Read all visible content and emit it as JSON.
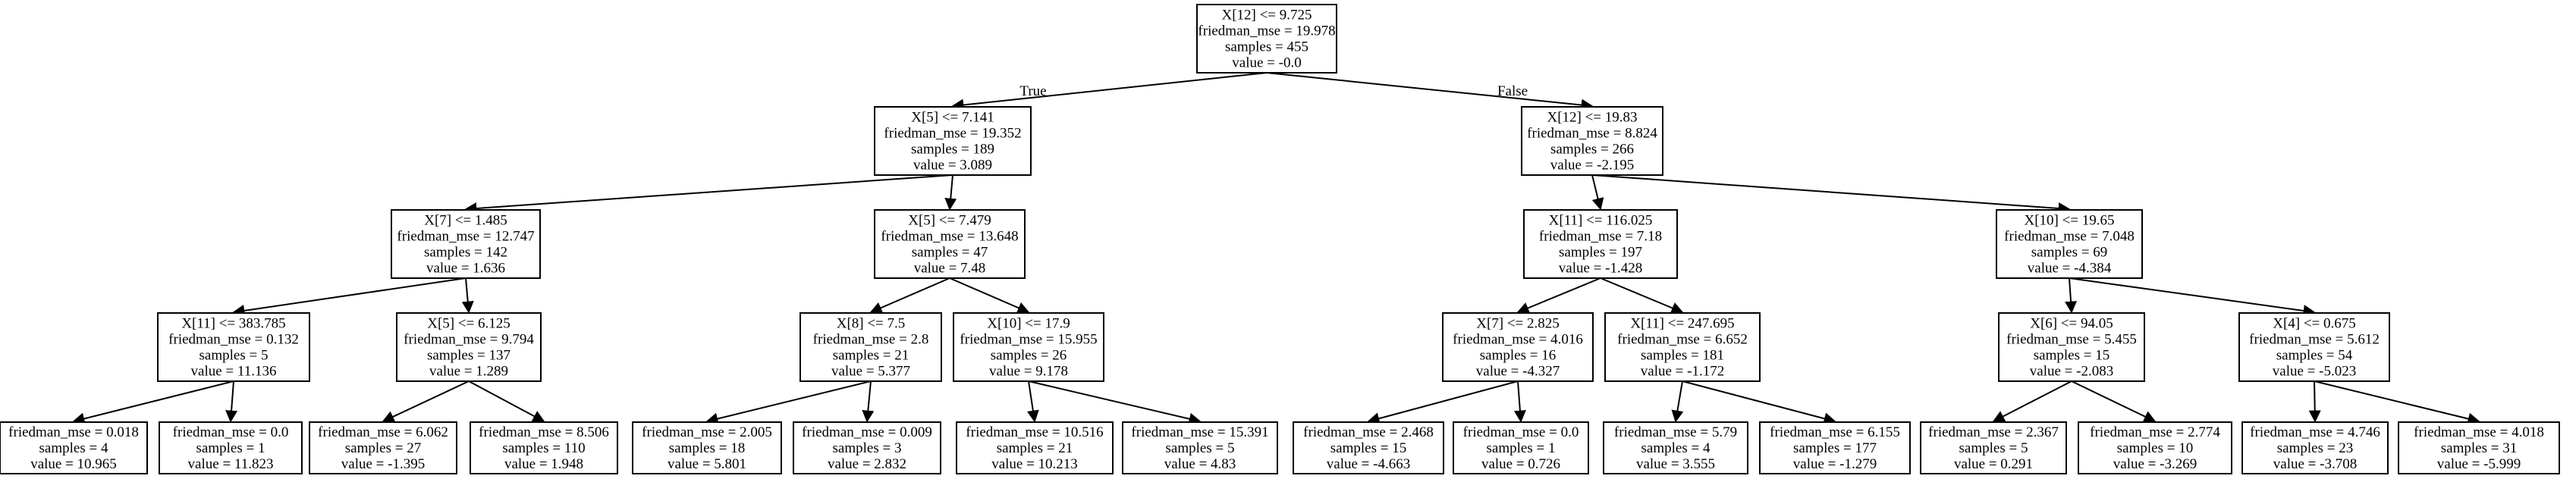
{
  "tree": {
    "nodes": [
      {
        "id": "n0",
        "lines": [
          "X[12] <= 9.725",
          "friedman_mse = 19.978",
          "samples = 455",
          "value = -0.0"
        ]
      },
      {
        "id": "n1",
        "lines": [
          "X[5] <= 7.141",
          "friedman_mse = 19.352",
          "samples = 189",
          "value = 3.089"
        ]
      },
      {
        "id": "n2",
        "lines": [
          "X[12] <= 19.83",
          "friedman_mse = 8.824",
          "samples = 266",
          "value = -2.195"
        ]
      },
      {
        "id": "n3",
        "lines": [
          "X[7] <= 1.485",
          "friedman_mse = 12.747",
          "samples = 142",
          "value = 1.636"
        ]
      },
      {
        "id": "n4",
        "lines": [
          "X[5] <= 7.479",
          "friedman_mse = 13.648",
          "samples = 47",
          "value = 7.48"
        ]
      },
      {
        "id": "n5",
        "lines": [
          "X[11] <= 116.025",
          "friedman_mse = 7.18",
          "samples = 197",
          "value = -1.428"
        ]
      },
      {
        "id": "n6",
        "lines": [
          "X[10] <= 19.65",
          "friedman_mse = 7.048",
          "samples = 69",
          "value = -4.384"
        ]
      },
      {
        "id": "n7",
        "lines": [
          "X[11] <= 383.785",
          "friedman_mse = 0.132",
          "samples = 5",
          "value = 11.136"
        ]
      },
      {
        "id": "n8",
        "lines": [
          "X[5] <= 6.125",
          "friedman_mse = 9.794",
          "samples = 137",
          "value = 1.289"
        ]
      },
      {
        "id": "n9",
        "lines": [
          "X[8] <= 7.5",
          "friedman_mse = 2.8",
          "samples = 21",
          "value = 5.377"
        ]
      },
      {
        "id": "n10",
        "lines": [
          "X[10] <= 17.9",
          "friedman_mse = 15.955",
          "samples = 26",
          "value = 9.178"
        ]
      },
      {
        "id": "n11",
        "lines": [
          "X[7] <= 2.825",
          "friedman_mse = 4.016",
          "samples = 16",
          "value = -4.327"
        ]
      },
      {
        "id": "n12",
        "lines": [
          "X[11] <= 247.695",
          "friedman_mse = 6.652",
          "samples = 181",
          "value = -1.172"
        ]
      },
      {
        "id": "n13",
        "lines": [
          "X[6] <= 94.05",
          "friedman_mse = 5.455",
          "samples = 15",
          "value = -2.083"
        ]
      },
      {
        "id": "n14",
        "lines": [
          "X[4] <= 0.675",
          "friedman_mse = 5.612",
          "samples = 54",
          "value = -5.023"
        ]
      },
      {
        "id": "n15",
        "lines": [
          "friedman_mse = 0.018",
          "samples = 4",
          "value = 10.965"
        ]
      },
      {
        "id": "n16",
        "lines": [
          "friedman_mse = 0.0",
          "samples = 1",
          "value = 11.823"
        ]
      },
      {
        "id": "n17",
        "lines": [
          "friedman_mse = 6.062",
          "samples = 27",
          "value = -1.395"
        ]
      },
      {
        "id": "n18",
        "lines": [
          "friedman_mse = 8.506",
          "samples = 110",
          "value = 1.948"
        ]
      },
      {
        "id": "n19",
        "lines": [
          "friedman_mse = 2.005",
          "samples = 18",
          "value = 5.801"
        ]
      },
      {
        "id": "n20",
        "lines": [
          "friedman_mse = 0.009",
          "samples = 3",
          "value = 2.832"
        ]
      },
      {
        "id": "n21",
        "lines": [
          "friedman_mse = 10.516",
          "samples = 21",
          "value = 10.213"
        ]
      },
      {
        "id": "n22",
        "lines": [
          "friedman_mse = 15.391",
          "samples = 5",
          "value = 4.83"
        ]
      },
      {
        "id": "n23",
        "lines": [
          "friedman_mse = 2.468",
          "samples = 15",
          "value = -4.663"
        ]
      },
      {
        "id": "n24",
        "lines": [
          "friedman_mse = 0.0",
          "samples = 1",
          "value = 0.726"
        ]
      },
      {
        "id": "n25",
        "lines": [
          "friedman_mse = 5.79",
          "samples = 4",
          "value = 3.555"
        ]
      },
      {
        "id": "n26",
        "lines": [
          "friedman_mse = 6.155",
          "samples = 177",
          "value = -1.279"
        ]
      },
      {
        "id": "n27",
        "lines": [
          "friedman_mse = 2.367",
          "samples = 5",
          "value = 0.291"
        ]
      },
      {
        "id": "n28",
        "lines": [
          "friedman_mse = 2.774",
          "samples = 10",
          "value = -3.269"
        ]
      },
      {
        "id": "n29",
        "lines": [
          "friedman_mse = 4.746",
          "samples = 23",
          "value = -3.708"
        ]
      },
      {
        "id": "n30",
        "lines": [
          "friedman_mse = 4.018",
          "samples = 31",
          "value = -5.999"
        ]
      }
    ],
    "edges": [
      {
        "from": "n0",
        "to": "n1",
        "label": "True"
      },
      {
        "from": "n0",
        "to": "n2",
        "label": "False"
      },
      {
        "from": "n1",
        "to": "n3",
        "label": ""
      },
      {
        "from": "n1",
        "to": "n4",
        "label": ""
      },
      {
        "from": "n2",
        "to": "n5",
        "label": ""
      },
      {
        "from": "n2",
        "to": "n6",
        "label": ""
      },
      {
        "from": "n3",
        "to": "n7",
        "label": ""
      },
      {
        "from": "n3",
        "to": "n8",
        "label": ""
      },
      {
        "from": "n4",
        "to": "n9",
        "label": ""
      },
      {
        "from": "n4",
        "to": "n10",
        "label": ""
      },
      {
        "from": "n5",
        "to": "n11",
        "label": ""
      },
      {
        "from": "n5",
        "to": "n12",
        "label": ""
      },
      {
        "from": "n6",
        "to": "n13",
        "label": ""
      },
      {
        "from": "n6",
        "to": "n14",
        "label": ""
      },
      {
        "from": "n7",
        "to": "n15",
        "label": ""
      },
      {
        "from": "n7",
        "to": "n16",
        "label": ""
      },
      {
        "from": "n8",
        "to": "n17",
        "label": ""
      },
      {
        "from": "n8",
        "to": "n18",
        "label": ""
      },
      {
        "from": "n9",
        "to": "n19",
        "label": ""
      },
      {
        "from": "n9",
        "to": "n20",
        "label": ""
      },
      {
        "from": "n10",
        "to": "n21",
        "label": ""
      },
      {
        "from": "n10",
        "to": "n22",
        "label": ""
      },
      {
        "from": "n11",
        "to": "n23",
        "label": ""
      },
      {
        "from": "n11",
        "to": "n24",
        "label": ""
      },
      {
        "from": "n12",
        "to": "n25",
        "label": ""
      },
      {
        "from": "n12",
        "to": "n26",
        "label": ""
      },
      {
        "from": "n13",
        "to": "n27",
        "label": ""
      },
      {
        "from": "n13",
        "to": "n28",
        "label": ""
      },
      {
        "from": "n14",
        "to": "n29",
        "label": ""
      },
      {
        "from": "n14",
        "to": "n30",
        "label": ""
      }
    ]
  }
}
